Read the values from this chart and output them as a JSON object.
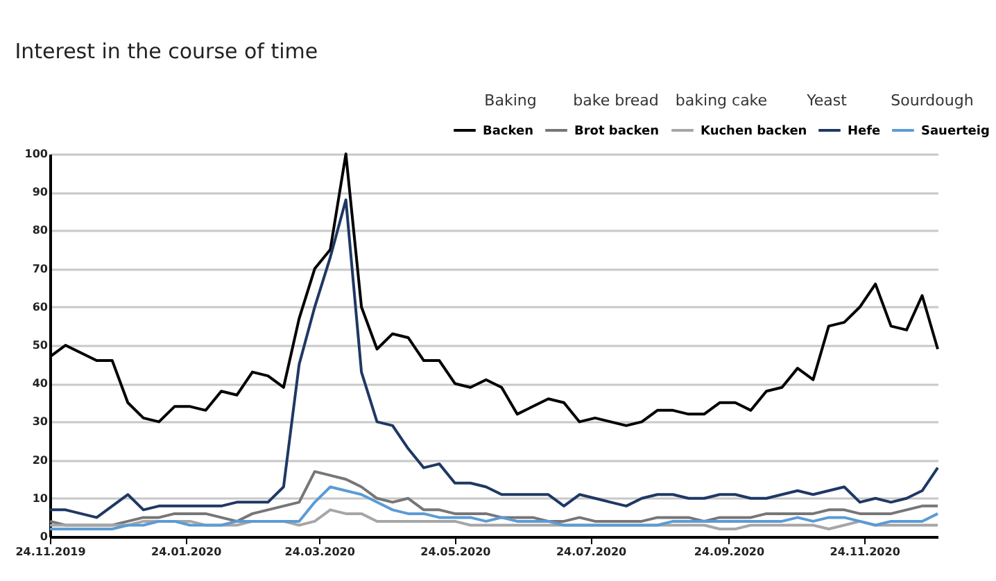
{
  "chart_data": {
    "type": "line",
    "title": "Interest in the course of time",
    "annotations": [
      "Baking",
      "bake bread",
      "baking cake",
      "Yeast",
      "Sourdough"
    ],
    "x": [
      "2019-11-24",
      "2019-12-01",
      "2019-12-08",
      "2019-12-15",
      "2019-12-22",
      "2019-12-29",
      "2020-01-05",
      "2020-01-12",
      "2020-01-19",
      "2020-01-26",
      "2020-02-02",
      "2020-02-09",
      "2020-02-16",
      "2020-02-23",
      "2020-03-01",
      "2020-03-08",
      "2020-03-15",
      "2020-03-22",
      "2020-03-29",
      "2020-04-05",
      "2020-04-12",
      "2020-04-19",
      "2020-04-26",
      "2020-05-03",
      "2020-05-10",
      "2020-05-17",
      "2020-05-24",
      "2020-05-31",
      "2020-06-07",
      "2020-06-14",
      "2020-06-21",
      "2020-06-28",
      "2020-07-05",
      "2020-07-12",
      "2020-07-19",
      "2020-07-26",
      "2020-08-02",
      "2020-08-09",
      "2020-08-16",
      "2020-08-23",
      "2020-08-30",
      "2020-09-06",
      "2020-09-13",
      "2020-09-20",
      "2020-09-27",
      "2020-10-04",
      "2020-10-11",
      "2020-10-18",
      "2020-10-25",
      "2020-11-01",
      "2020-11-08",
      "2020-11-15",
      "2020-11-22",
      "2020-11-29",
      "2020-12-06",
      "2020-12-13",
      "2020-12-20",
      "2020-12-27"
    ],
    "series": [
      {
        "name": "Backen",
        "color": "#000000",
        "values": [
          47,
          50,
          48,
          46,
          46,
          35,
          31,
          30,
          34,
          34,
          33,
          38,
          37,
          43,
          42,
          39,
          57,
          70,
          75,
          100,
          60,
          49,
          53,
          52,
          46,
          46,
          40,
          39,
          41,
          39,
          32,
          34,
          36,
          35,
          30,
          31,
          30,
          29,
          30,
          33,
          33,
          32,
          32,
          35,
          35,
          33,
          38,
          39,
          44,
          41,
          55,
          56,
          60,
          66,
          55,
          54,
          63,
          49
        ]
      },
      {
        "name": "Brot backen",
        "color": "#767676",
        "values": [
          4,
          3,
          3,
          3,
          3,
          4,
          5,
          5,
          6,
          6,
          6,
          5,
          4,
          6,
          7,
          8,
          9,
          17,
          16,
          15,
          13,
          10,
          9,
          10,
          7,
          7,
          6,
          6,
          6,
          5,
          5,
          5,
          4,
          4,
          5,
          4,
          4,
          4,
          4,
          5,
          5,
          5,
          4,
          5,
          5,
          5,
          6,
          6,
          6,
          6,
          7,
          7,
          6,
          6,
          6,
          7,
          8,
          8
        ]
      },
      {
        "name": "Kuchen backen",
        "color": "#a6a6a6",
        "values": [
          3,
          3,
          3,
          3,
          3,
          3,
          4,
          4,
          4,
          4,
          3,
          3,
          3,
          4,
          4,
          4,
          3,
          4,
          7,
          6,
          6,
          4,
          4,
          4,
          4,
          4,
          4,
          3,
          3,
          3,
          3,
          3,
          3,
          3,
          3,
          3,
          3,
          3,
          3,
          3,
          3,
          3,
          3,
          2,
          2,
          3,
          3,
          3,
          3,
          3,
          2,
          3,
          4,
          3,
          3,
          3,
          3,
          3
        ]
      },
      {
        "name": "Hefe",
        "color": "#1f3864",
        "values": [
          7,
          7,
          6,
          5,
          8,
          11,
          7,
          8,
          8,
          8,
          8,
          8,
          9,
          9,
          9,
          13,
          45,
          60,
          73,
          88,
          43,
          30,
          29,
          23,
          18,
          19,
          14,
          14,
          13,
          11,
          11,
          11,
          11,
          8,
          11,
          10,
          9,
          8,
          10,
          11,
          11,
          10,
          10,
          11,
          11,
          10,
          10,
          11,
          12,
          11,
          12,
          13,
          9,
          10,
          9,
          10,
          12,
          18
        ]
      },
      {
        "name": "Sauerteig",
        "color": "#5b9bd5",
        "values": [
          2,
          2,
          2,
          2,
          2,
          3,
          3,
          4,
          4,
          3,
          3,
          3,
          4,
          4,
          4,
          4,
          4,
          9,
          13,
          12,
          11,
          9,
          7,
          6,
          6,
          5,
          5,
          5,
          4,
          5,
          4,
          4,
          4,
          3,
          3,
          3,
          3,
          3,
          3,
          3,
          4,
          4,
          4,
          4,
          4,
          4,
          4,
          4,
          5,
          4,
          5,
          5,
          4,
          3,
          4,
          4,
          4,
          6
        ]
      }
    ],
    "xlim": [
      "2019-11-24",
      "2020-12-27"
    ],
    "xticks": [
      {
        "value": "2019-11-24",
        "label": "24.11.2019"
      },
      {
        "value": "2020-01-24",
        "label": "24.01.2020"
      },
      {
        "value": "2020-03-24",
        "label": "24.03.2020"
      },
      {
        "value": "2020-05-24",
        "label": "24.05.2020"
      },
      {
        "value": "2020-07-24",
        "label": "24.07.2020"
      },
      {
        "value": "2020-09-24",
        "label": "24.09.2020"
      },
      {
        "value": "2020-11-24",
        "label": "24.11.2020"
      }
    ],
    "ylim": [
      0,
      100
    ],
    "yticks": [
      0,
      10,
      20,
      30,
      40,
      50,
      60,
      70,
      80,
      90,
      100
    ],
    "grid": "y",
    "legend": "top right",
    "marker": "none",
    "line_style": "solid"
  }
}
